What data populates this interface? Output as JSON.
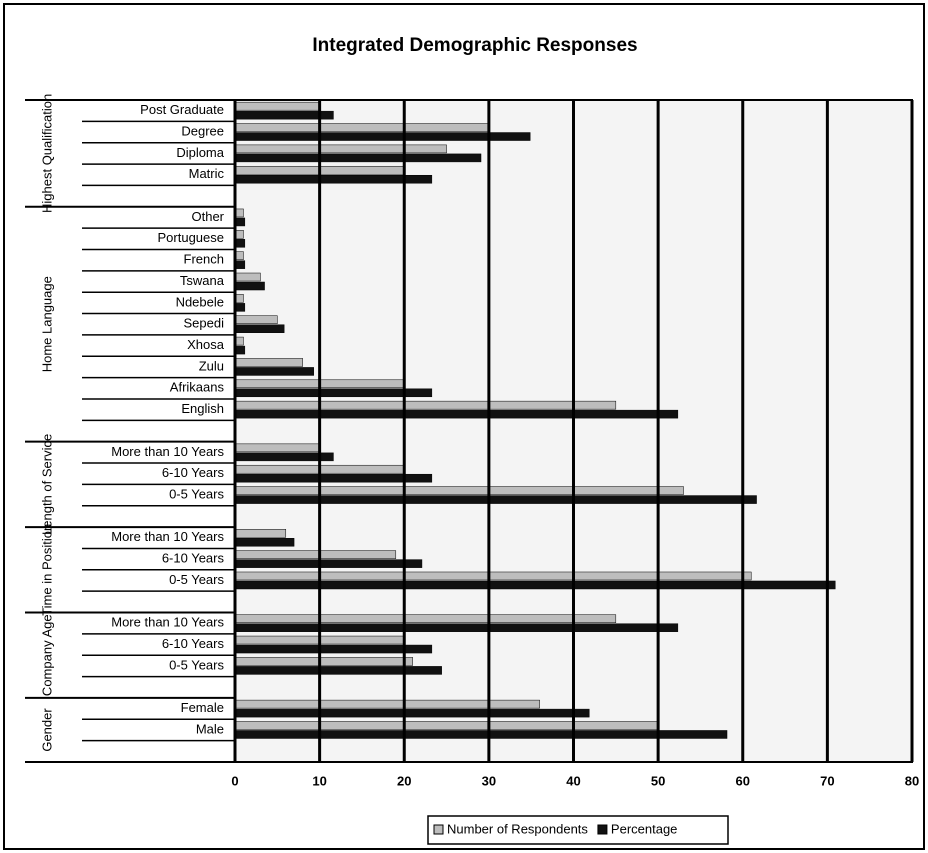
{
  "chart_data": {
    "type": "bar",
    "orientation": "horizontal",
    "title": "Integrated Demographic Responses",
    "groups": [
      {
        "name": "Highest Qualification",
        "categories": [
          "Post Graduate",
          "Degree",
          "Diploma",
          "Matric",
          null
        ]
      },
      {
        "name": "Home Language",
        "categories": [
          "Other",
          "Portuguese",
          "French",
          "Tswana",
          "Ndebele",
          "Sepedi",
          "Xhosa",
          "Zulu",
          "Afrikaans",
          "English",
          null
        ]
      },
      {
        "name": "Length of Service",
        "categories": [
          "More than 10 Years",
          "6-10 Years",
          "0-5 Years",
          null
        ]
      },
      {
        "name": "Time in Position",
        "categories": [
          "More than 10 Years",
          "6-10 Years",
          "0-5 Years",
          null
        ]
      },
      {
        "name": "Company Age",
        "categories": [
          "More than 10 Years",
          "6-10 Years",
          "0-5 Years",
          null
        ]
      },
      {
        "name": "Gender",
        "categories": [
          "Female",
          "Male",
          null
        ]
      }
    ],
    "series": [
      {
        "name": "Number of Respondents",
        "color": "#bdbdbd",
        "values": [
          10,
          30,
          25,
          20,
          null,
          1,
          1,
          1,
          3,
          1,
          5,
          1,
          8,
          20,
          45,
          null,
          10,
          20,
          53,
          null,
          6,
          19,
          61,
          null,
          45,
          20,
          21,
          null,
          36,
          50,
          null
        ]
      },
      {
        "name": "Percentage",
        "color": "#111111",
        "values": [
          11.63,
          34.88,
          29.07,
          23.26,
          null,
          1.16,
          1.16,
          1.16,
          3.49,
          1.16,
          5.81,
          1.16,
          9.3,
          23.26,
          52.33,
          null,
          11.63,
          23.26,
          61.63,
          null,
          6.98,
          22.09,
          70.93,
          null,
          52.33,
          23.26,
          24.42,
          null,
          41.86,
          58.14,
          null
        ]
      }
    ],
    "xlim": [
      0,
      80
    ],
    "xticks": [
      0,
      10,
      20,
      30,
      40,
      50,
      60,
      70,
      80
    ],
    "grid": true,
    "legend": "bottom"
  }
}
